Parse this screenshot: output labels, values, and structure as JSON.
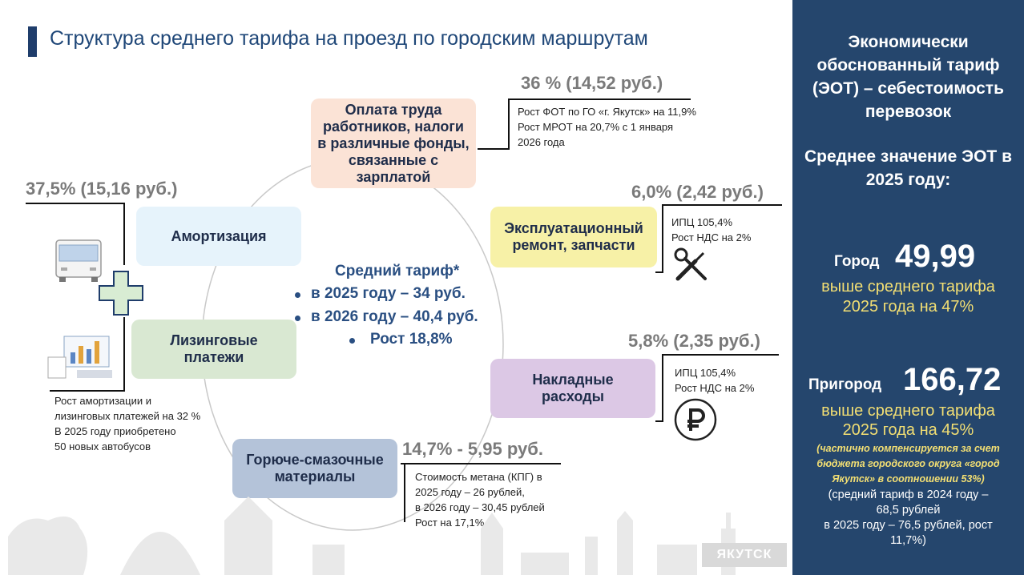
{
  "title": "Структура среднего тарифа на проезд по городским маршрутам",
  "center": {
    "heading": "Средний тариф*",
    "items": [
      "в 2025 году – 34 руб.",
      "в 2026 году – 40,4 руб.",
      "Рост 18,8%"
    ]
  },
  "segments": {
    "labor": {
      "pct": "36 % (14,52 руб.)",
      "label_lines": [
        "Оплата труда",
        "работников, налоги",
        "в различные фонды,",
        "связанные с",
        "зарплатой"
      ],
      "note_lines": [
        "Рост ФОТ по ГО «г. Якутск» на 11,9%",
        "Рост МРОТ на 20,7% с 1 января",
        "2026 года"
      ]
    },
    "repair": {
      "pct": "6,0% (2,42 руб.)",
      "label_lines": [
        "Эксплуатационный",
        "ремонт, запчасти"
      ],
      "note_lines": [
        "ИПЦ 105,4%",
        "Рост НДС на 2%"
      ]
    },
    "overhead": {
      "pct": "5,8% (2,35 руб.)",
      "label_lines": [
        "Накладные",
        "расходы"
      ],
      "note_lines": [
        "ИПЦ 105,4%",
        "Рост НДС на 2%"
      ]
    },
    "fuel": {
      "pct": "14,7% - 5,95 руб.",
      "label_lines": [
        "Горюче-смазочные",
        "материалы"
      ],
      "note_lines": [
        "Стоимость метана (КПГ) в",
        "2025 году – 26 рублей,",
        "в 2026 году – 30,45 рублей",
        "Рост на 17,1%"
      ]
    },
    "amort": {
      "pct": "37,5% (15,16 руб.)",
      "label_amort": "Амортизация",
      "label_leasing_lines": [
        "Лизинговые",
        "платежи"
      ],
      "note_lines": [
        "Рост амортизации и",
        "лизинговых платежей на 32 %",
        "В 2025 году приобретено",
        "50 новых автобусов"
      ]
    }
  },
  "panel": {
    "heading_lines": [
      "Экономически",
      "обоснованный тариф",
      "(ЭОТ) – себестоимость",
      "перевозок"
    ],
    "avg_lines": [
      "Среднее значение ЭОТ в",
      "2025 году:"
    ],
    "city_label": "Город",
    "city_value": "49,99",
    "city_note_lines": [
      "выше среднего тарифа",
      "2025 года на 47%"
    ],
    "suburb_label": "Пригород",
    "suburb_value": "166,72",
    "suburb_note_lines": [
      "выше среднего тарифа",
      "2025 года на 45%"
    ],
    "suburb_italic_lines": [
      "(частично компенсируется за счет",
      "бюджета городского округа «город",
      "Якутск» в соотношении 53%)"
    ],
    "suburb_extra_lines": [
      "(средний тариф в 2024 году –",
      "68,5 рублей",
      "в 2025 году – 76,5 рублей, рост",
      "11,7%)"
    ]
  },
  "watermark": "ЯКУТСК",
  "colors": {
    "title": "#1f4778",
    "panel_bg": "#25466d",
    "box_labor": "#fbe3d6",
    "box_repair": "#f7f1a7",
    "box_overhead": "#dcc8e5",
    "box_fuel": "#b4c3d9",
    "box_amort": "#e6f3fb",
    "box_leasing": "#d9e8d2",
    "cross": "#d8ecd3",
    "panel_accent": "#f3df73"
  }
}
